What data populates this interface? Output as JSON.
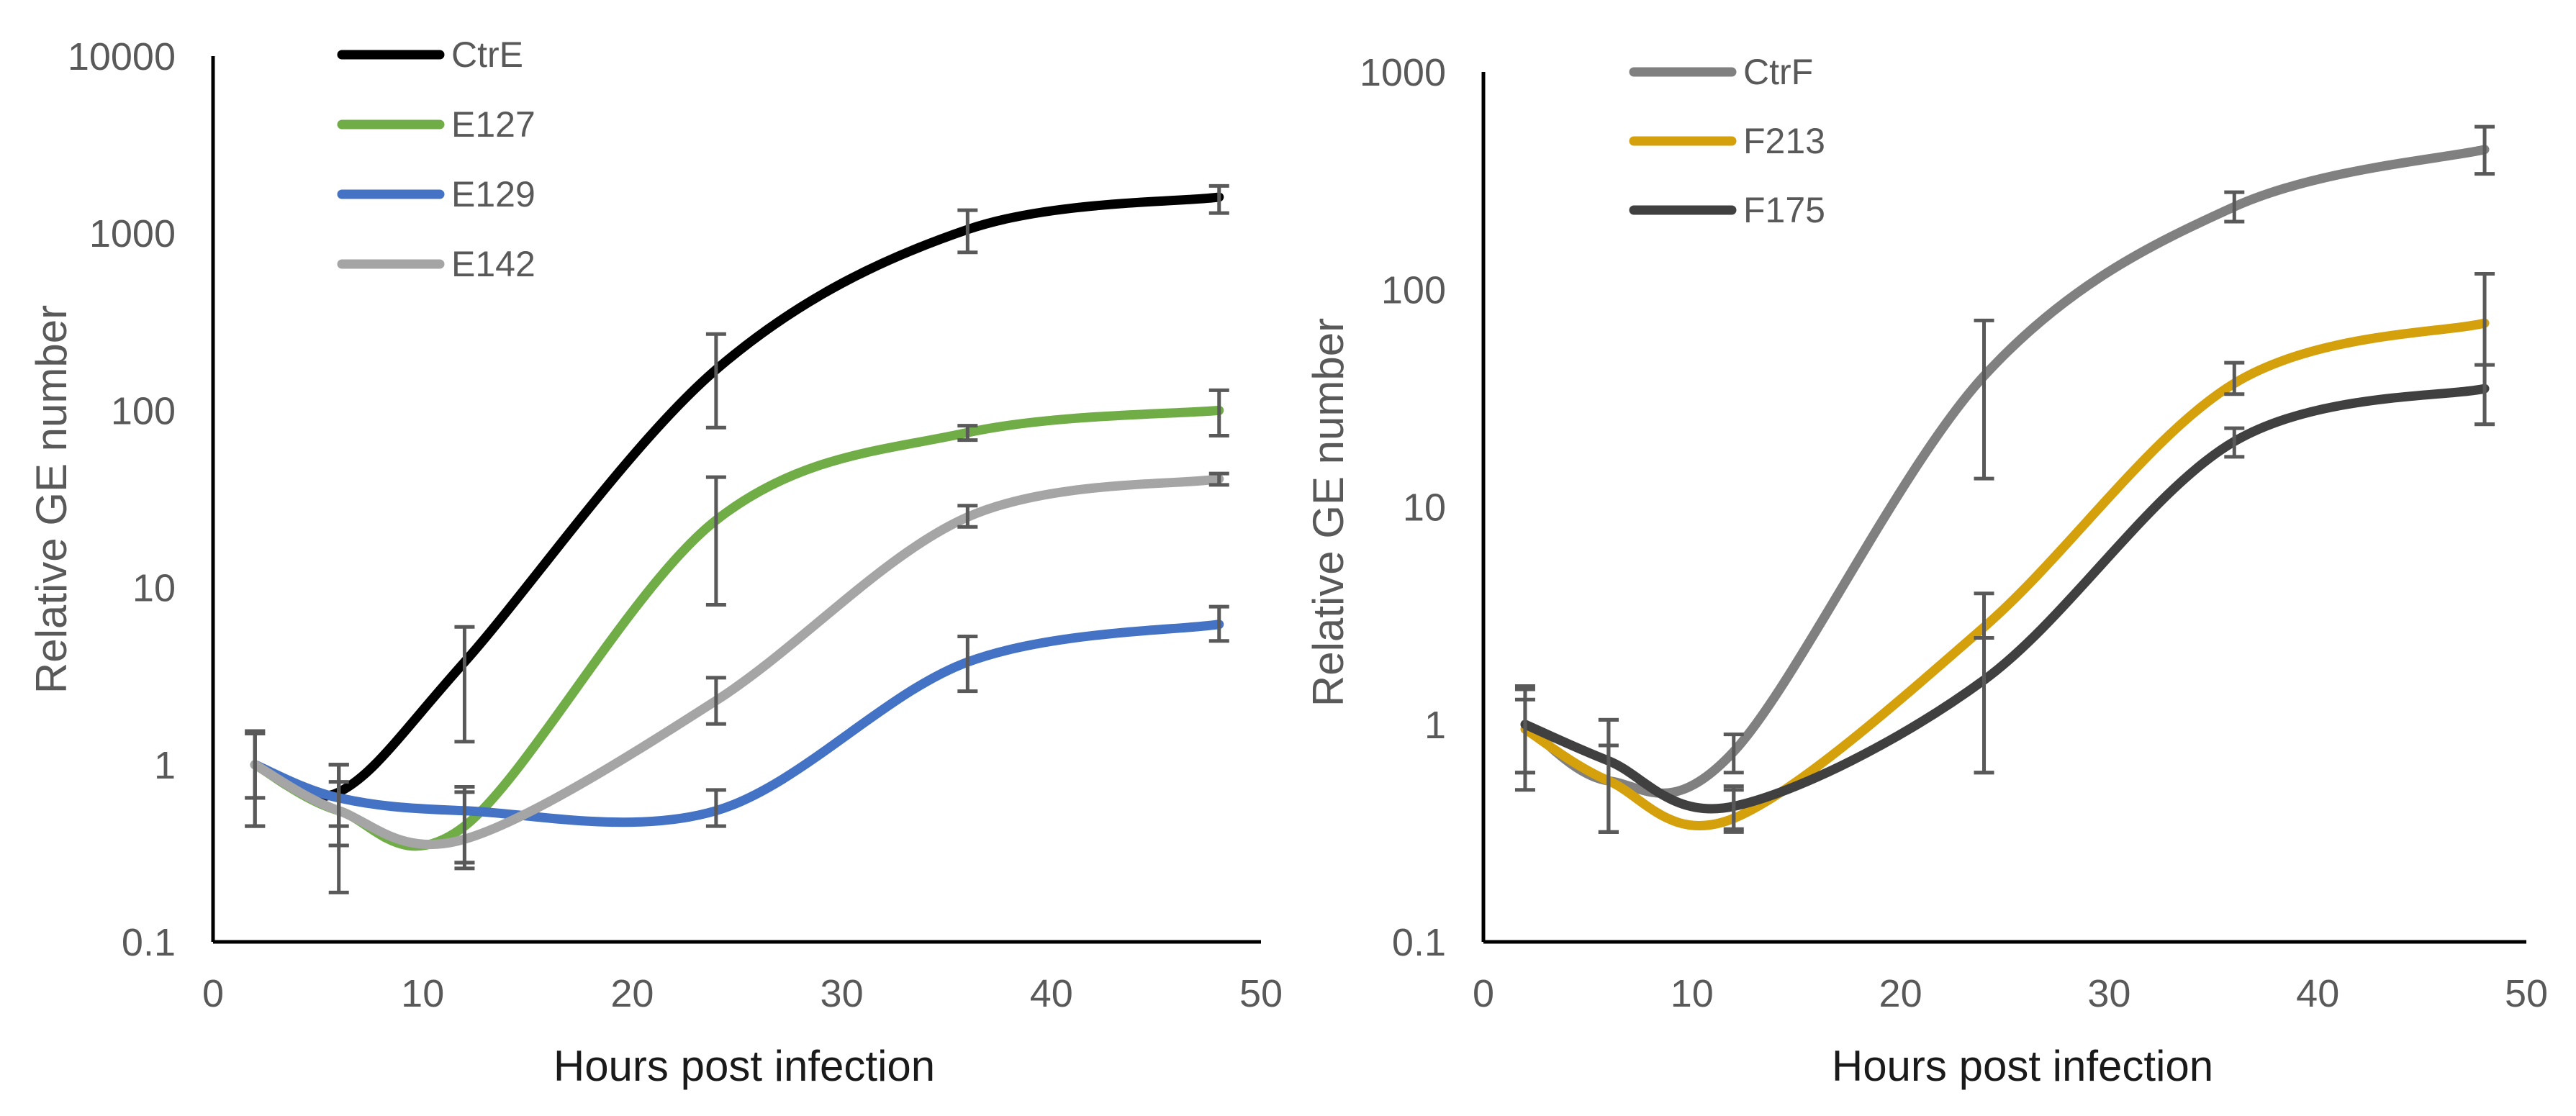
{
  "chart_data": [
    {
      "type": "line",
      "title": "",
      "xlabel": "Hours post infection",
      "ylabel": "Relative  GE number",
      "yscale": "log",
      "xlim": [
        0,
        50
      ],
      "ylim": [
        0.1,
        10000
      ],
      "x_ticks": [
        "0",
        "10",
        "20",
        "30",
        "40",
        "50"
      ],
      "y_ticks": [
        "0.1",
        "1",
        "10",
        "100",
        "1000",
        "10000"
      ],
      "legend_position": "top-left",
      "x": [
        2,
        6,
        12,
        24,
        36,
        48
      ],
      "series": [
        {
          "name": "CtrE",
          "color": "#000000",
          "values": [
            1,
            0.7,
            3.8,
            170,
            1050,
            1600
          ],
          "err_low": [
            0.65,
            0.45,
            1.35,
            80,
            780,
            1300
          ],
          "err_high": [
            1.5,
            1.0,
            6.0,
            270,
            1350,
            1850
          ]
        },
        {
          "name": "E127",
          "color": "#70ad47",
          "values": [
            1,
            0.55,
            0.45,
            24,
            75,
            100
          ],
          "err_low": [
            0.65,
            0.35,
            0.28,
            8,
            68,
            72
          ],
          "err_high": [
            1.5,
            0.8,
            0.7,
            42,
            82,
            130
          ]
        },
        {
          "name": "E129",
          "color": "#4472c4",
          "values": [
            1,
            0.65,
            0.55,
            0.55,
            3.8,
            6.2
          ],
          "err_low": [
            0.45,
            0.35,
            0.28,
            0.45,
            2.6,
            5.0
          ],
          "err_high": [
            1.55,
            1.0,
            0.75,
            0.72,
            5.3,
            7.8
          ]
        },
        {
          "name": "E142",
          "color": "#a5a5a5",
          "values": [
            1,
            0.55,
            0.38,
            2.3,
            25,
            41
          ],
          "err_low": [
            0.45,
            0.19,
            0.26,
            1.7,
            22,
            38
          ],
          "err_high": [
            1.55,
            1.0,
            0.75,
            3.1,
            29,
            44
          ]
        }
      ]
    },
    {
      "type": "line",
      "title": "",
      "xlabel": "Hours post infection",
      "ylabel": "Relative  GE number",
      "yscale": "log",
      "xlim": [
        0,
        50
      ],
      "ylim": [
        0.1,
        1000
      ],
      "x_ticks": [
        "0",
        "10",
        "20",
        "30",
        "40",
        "50"
      ],
      "y_ticks": [
        "0.1",
        "1",
        "10",
        "100",
        "1000"
      ],
      "legend_position": "top-left",
      "x": [
        2,
        6,
        12,
        24,
        36,
        48
      ],
      "series": [
        {
          "name": "CtrF",
          "color": "#808080",
          "values": [
            1,
            0.55,
            0.75,
            40,
            240,
            440
          ],
          "err_low": [
            0.5,
            0.32,
            0.6,
            13.5,
            205,
            340
          ],
          "err_high": [
            1.5,
            1.05,
            0.9,
            72,
            280,
            560
          ]
        },
        {
          "name": "F213",
          "color": "#d4a00b",
          "values": [
            0.95,
            0.55,
            0.37,
            2.8,
            37,
            70
          ],
          "err_low": [
            0.6,
            0.32,
            0.32,
            0.6,
            33,
            24
          ],
          "err_high": [
            1.3,
            0.8,
            0.5,
            4.0,
            46,
            118
          ]
        },
        {
          "name": "F175",
          "color": "#404040",
          "values": [
            1,
            0.68,
            0.42,
            1.6,
            20,
            35
          ],
          "err_low": [
            0.6,
            0.32,
            0.33,
            0.6,
            17,
            24
          ],
          "err_high": [
            1.45,
            1.05,
            0.52,
            2.5,
            23,
            45
          ]
        }
      ]
    }
  ]
}
